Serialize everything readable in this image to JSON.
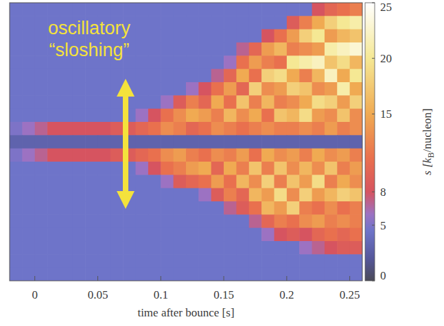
{
  "chart_data": {
    "type": "heatmap",
    "x_label": "time after bounce [s]",
    "xlim": [
      -0.02,
      0.26
    ],
    "xticks": [
      0,
      0.05,
      0.1,
      0.15,
      0.2,
      0.25
    ],
    "tick_labels": "x",
    "annotation": [
      "oscillatory",
      "“sloshing”"
    ],
    "x_edges": [
      -0.02,
      -0.01,
      0,
      0.01,
      0.02,
      0.03,
      0.04,
      0.05,
      0.06,
      0.07,
      0.08,
      0.09,
      0.1,
      0.11,
      0.12,
      0.13,
      0.14,
      0.15,
      0.16,
      0.17,
      0.18,
      0.19,
      0.2,
      0.21,
      0.22,
      0.23,
      0.24,
      0.25,
      0.26
    ],
    "cells": [
      [
        4.5,
        4.5,
        4.5,
        4.5,
        4.5,
        4.5,
        4.5,
        4.5,
        4.5,
        4.5,
        4.5,
        4.5,
        4.5,
        4.5,
        4.5,
        4.5,
        4.5,
        4.5,
        4.5,
        4.5,
        4.5,
        4.5,
        4.5,
        4.5,
        8,
        10,
        11,
        12
      ],
      [
        4.5,
        4.5,
        4.5,
        4.5,
        4.5,
        4.5,
        4.5,
        4.5,
        4.5,
        4.5,
        4.5,
        4.5,
        4.5,
        4.5,
        4.5,
        4.5,
        4.5,
        4.5,
        4.5,
        4.5,
        4.5,
        4.5,
        9,
        12,
        15,
        18,
        20,
        21
      ],
      [
        4.5,
        4.5,
        4.5,
        4.5,
        4.5,
        4.5,
        4.5,
        4.5,
        4.5,
        4.5,
        4.5,
        4.5,
        4.5,
        4.5,
        4.5,
        4.5,
        4.5,
        4.5,
        4.5,
        4.5,
        8,
        11,
        14,
        18,
        20,
        14,
        16,
        17
      ],
      [
        4.5,
        4.5,
        4.5,
        4.5,
        4.5,
        4.5,
        4.5,
        4.5,
        4.5,
        4.5,
        4.5,
        4.5,
        4.5,
        4.5,
        4.5,
        4.5,
        4.5,
        4.5,
        7,
        10,
        14,
        16,
        12,
        13,
        14,
        21,
        22,
        23
      ],
      [
        4.5,
        4.5,
        4.5,
        4.5,
        4.5,
        4.5,
        4.5,
        4.5,
        4.5,
        4.5,
        4.5,
        4.5,
        4.5,
        4.5,
        4.5,
        4.5,
        4.5,
        6,
        11,
        14,
        12,
        11,
        20,
        21,
        22,
        17,
        19,
        16
      ],
      [
        4.5,
        4.5,
        4.5,
        4.5,
        4.5,
        4.5,
        4.5,
        4.5,
        4.5,
        4.5,
        4.5,
        4.5,
        4.5,
        4.5,
        4.5,
        4.5,
        7,
        10,
        15,
        11,
        18,
        19,
        15,
        12,
        16,
        22,
        15,
        20
      ],
      [
        4.5,
        4.5,
        4.5,
        4.5,
        4.5,
        4.5,
        4.5,
        4.5,
        4.5,
        4.5,
        4.5,
        4.5,
        4.5,
        4.5,
        6,
        8,
        11,
        14,
        10,
        18,
        13,
        14,
        18,
        17,
        13,
        14,
        21,
        15
      ],
      [
        4.5,
        4.5,
        4.5,
        4.5,
        4.5,
        4.5,
        4.5,
        4.5,
        4.5,
        4.5,
        4.5,
        4.5,
        6,
        9,
        12,
        10,
        15,
        11,
        17,
        12,
        16,
        12,
        13,
        15,
        19,
        18,
        14,
        18
      ],
      [
        4.5,
        4.5,
        4.5,
        4.5,
        4.5,
        4.5,
        4.5,
        4.5,
        4.5,
        4.5,
        6,
        8,
        11,
        13,
        15,
        14,
        12,
        16,
        13,
        15,
        11,
        17,
        16,
        19,
        14,
        13,
        17,
        13
      ],
      [
        5,
        6,
        7,
        8,
        8,
        8,
        8,
        8,
        9,
        9,
        10,
        11,
        13,
        12,
        10,
        11,
        13,
        12,
        11,
        12,
        13,
        12,
        12,
        13,
        12,
        14,
        12,
        13
      ],
      [
        3,
        3,
        3,
        3,
        3,
        3,
        3,
        3,
        3,
        3,
        3,
        3,
        3,
        3,
        3,
        3,
        3,
        3,
        3,
        3,
        3,
        3,
        3,
        3,
        3,
        3,
        3,
        3
      ],
      [
        5,
        6,
        7,
        8,
        8,
        8,
        8,
        8,
        9,
        9,
        10,
        11,
        13,
        14,
        12,
        11,
        13,
        12,
        14,
        11,
        15,
        13,
        14,
        12,
        15,
        13,
        14,
        12
      ],
      [
        4.5,
        4.5,
        4.5,
        4.5,
        4.5,
        4.5,
        4.5,
        4.5,
        4.5,
        4.5,
        6,
        8,
        11,
        12,
        14,
        15,
        10,
        15,
        12,
        17,
        12,
        17,
        13,
        16,
        13,
        17,
        12,
        14
      ],
      [
        4.5,
        4.5,
        4.5,
        4.5,
        4.5,
        4.5,
        4.5,
        4.5,
        4.5,
        4.5,
        4.5,
        4.5,
        6,
        9,
        10,
        11,
        14,
        11,
        16,
        13,
        18,
        12,
        17,
        14,
        19,
        12,
        15,
        13
      ],
      [
        4.5,
        4.5,
        4.5,
        4.5,
        4.5,
        4.5,
        4.5,
        4.5,
        4.5,
        4.5,
        4.5,
        4.5,
        4.5,
        4.5,
        4.5,
        6,
        9,
        12,
        10,
        16,
        14,
        19,
        13,
        18,
        14,
        16,
        18,
        17
      ],
      [
        4.5,
        4.5,
        4.5,
        4.5,
        4.5,
        4.5,
        4.5,
        4.5,
        4.5,
        4.5,
        4.5,
        4.5,
        4.5,
        4.5,
        4.5,
        4.5,
        4.5,
        7,
        9,
        11,
        16,
        14,
        18,
        12,
        11,
        13,
        11,
        12
      ],
      [
        4.5,
        4.5,
        4.5,
        4.5,
        4.5,
        4.5,
        4.5,
        4.5,
        4.5,
        4.5,
        4.5,
        4.5,
        4.5,
        4.5,
        4.5,
        4.5,
        4.5,
        4.5,
        4.5,
        7,
        10,
        12,
        11,
        13,
        14,
        12,
        13,
        12
      ],
      [
        4.5,
        4.5,
        4.5,
        4.5,
        4.5,
        4.5,
        4.5,
        4.5,
        4.5,
        4.5,
        4.5,
        4.5,
        4.5,
        4.5,
        4.5,
        4.5,
        4.5,
        4.5,
        4.5,
        4.5,
        6,
        8,
        9,
        8,
        10,
        11,
        10,
        11
      ],
      [
        4.5,
        4.5,
        4.5,
        4.5,
        4.5,
        4.5,
        4.5,
        4.5,
        4.5,
        4.5,
        4.5,
        4.5,
        4.5,
        4.5,
        4.5,
        4.5,
        4.5,
        4.5,
        4.5,
        4.5,
        4.5,
        4.5,
        4.5,
        6,
        7,
        8,
        9,
        9
      ],
      [
        4.5,
        4.5,
        4.5,
        4.5,
        4.5,
        4.5,
        4.5,
        4.5,
        4.5,
        4.5,
        4.5,
        4.5,
        4.5,
        4.5,
        4.5,
        4.5,
        4.5,
        4.5,
        4.5,
        4.5,
        4.5,
        4.5,
        4.5,
        4.5,
        4.5,
        4.5,
        4.5,
        4.5
      ],
      [
        4.5,
        4.5,
        4.5,
        4.5,
        4.5,
        4.5,
        4.5,
        4.5,
        4.5,
        4.5,
        4.5,
        4.5,
        4.5,
        4.5,
        4.5,
        4.5,
        4.5,
        4.5,
        4.5,
        4.5,
        4.5,
        4.5,
        4.5,
        4.5,
        4.5,
        4.5,
        4.5,
        4.5
      ]
    ],
    "colorbar": {
      "label": [
        "s [k",
        "B",
        "/nucleon]"
      ],
      "range": [
        0,
        25
      ],
      "ticks": [
        0,
        5,
        8,
        15,
        20,
        25
      ],
      "stops": [
        {
          "value": 0,
          "color": "#4a4a58"
        },
        {
          "value": 2,
          "color": "#55579a"
        },
        {
          "value": 4.5,
          "color": "#6e74c9"
        },
        {
          "value": 6,
          "color": "#9c72c2"
        },
        {
          "value": 8,
          "color": "#d65460"
        },
        {
          "value": 11,
          "color": "#e9704e"
        },
        {
          "value": 15,
          "color": "#f0aa52"
        },
        {
          "value": 20,
          "color": "#f5e894"
        },
        {
          "value": 25,
          "color": "#ffffff"
        }
      ]
    }
  }
}
